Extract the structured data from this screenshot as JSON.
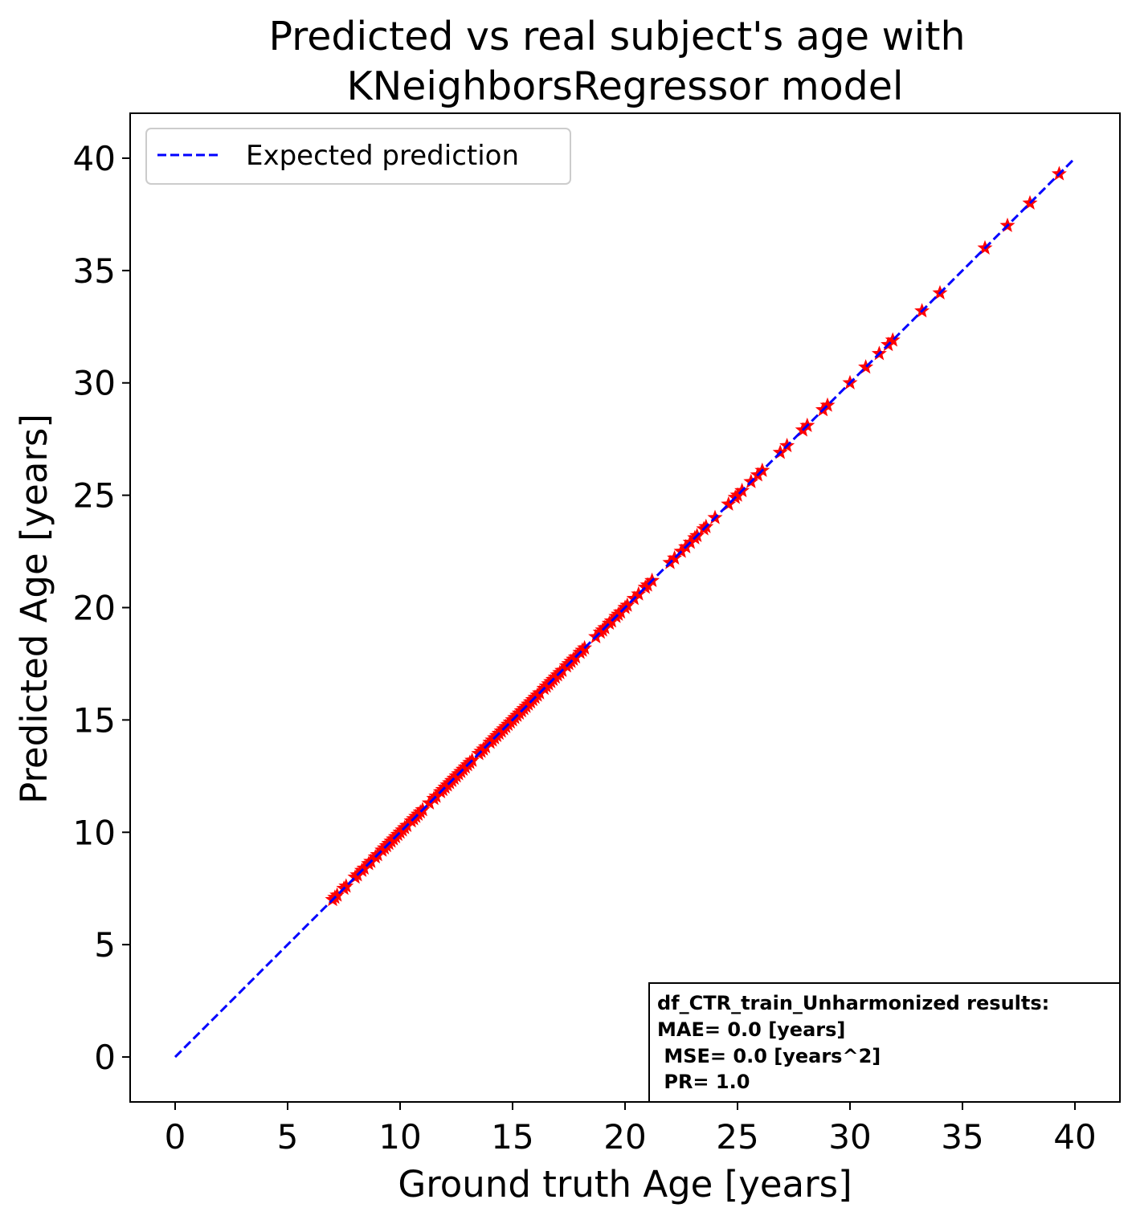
{
  "chart_data": {
    "type": "scatter",
    "title_lines": [
      "Predicted vs real subject's age with",
      "KNeighborsRegressor model"
    ],
    "xlabel": "Ground truth Age [years]",
    "ylabel": "Predicted Age [years]",
    "xlim": [
      -2,
      42
    ],
    "ylim": [
      -2,
      42
    ],
    "xticks": [
      0,
      5,
      10,
      15,
      20,
      25,
      30,
      35,
      40
    ],
    "yticks": [
      0,
      5,
      10,
      15,
      20,
      25,
      30,
      35,
      40
    ],
    "grid": false,
    "legend": {
      "location": "upper-left",
      "entries": [
        {
          "label": "Expected prediction",
          "color": "#0000ff",
          "style": "dashed"
        }
      ]
    },
    "expected_line": {
      "x": [
        0,
        40
      ],
      "y": [
        0,
        40
      ],
      "color": "#0000ff"
    },
    "scatter_series": {
      "marker": "star",
      "color": "#ff0000",
      "x": [
        7.0,
        7.1,
        7.2,
        7.5,
        7.6,
        8.0,
        8.1,
        8.3,
        8.4,
        8.6,
        8.7,
        8.9,
        9.0,
        9.2,
        9.3,
        9.4,
        9.5,
        9.6,
        9.7,
        9.8,
        9.9,
        10.0,
        10.1,
        10.2,
        10.3,
        10.5,
        10.6,
        10.7,
        10.8,
        10.9,
        11.0,
        11.3,
        11.5,
        11.6,
        11.8,
        11.9,
        12.0,
        12.1,
        12.2,
        12.3,
        12.4,
        12.5,
        12.6,
        12.7,
        12.8,
        12.9,
        13.0,
        13.1,
        13.2,
        13.5,
        13.6,
        13.7,
        13.8,
        14.0,
        14.1,
        14.2,
        14.3,
        14.4,
        14.5,
        14.6,
        14.7,
        14.8,
        14.9,
        15.0,
        15.1,
        15.2,
        15.3,
        15.4,
        15.5,
        15.6,
        15.7,
        15.8,
        15.9,
        16.0,
        16.1,
        16.2,
        16.4,
        16.5,
        16.6,
        16.7,
        16.8,
        16.9,
        17.0,
        17.1,
        17.2,
        17.4,
        17.5,
        17.6,
        17.7,
        17.8,
        18.0,
        18.1,
        18.2,
        18.7,
        18.9,
        19.0,
        19.1,
        19.3,
        19.4,
        19.6,
        19.7,
        19.8,
        20.0,
        20.1,
        20.4,
        20.6,
        20.9,
        21.0,
        21.2,
        22.0,
        22.2,
        22.5,
        22.7,
        22.9,
        23.1,
        23.2,
        23.5,
        23.6,
        24.0,
        24.6,
        24.9,
        25.0,
        25.2,
        25.6,
        25.9,
        26.1,
        26.9,
        27.2,
        27.9,
        28.1,
        28.8,
        29.0,
        30.0,
        30.7,
        31.3,
        31.7,
        31.9,
        33.2,
        34.0,
        36.0,
        37.0,
        38.0,
        39.3
      ],
      "y": [
        7.0,
        7.1,
        7.2,
        7.5,
        7.6,
        8.0,
        8.1,
        8.3,
        8.4,
        8.6,
        8.7,
        8.9,
        9.0,
        9.2,
        9.3,
        9.4,
        9.5,
        9.6,
        9.7,
        9.8,
        9.9,
        10.0,
        10.1,
        10.2,
        10.3,
        10.5,
        10.6,
        10.7,
        10.8,
        10.9,
        11.0,
        11.3,
        11.5,
        11.6,
        11.8,
        11.9,
        12.0,
        12.1,
        12.2,
        12.3,
        12.4,
        12.5,
        12.6,
        12.7,
        12.8,
        12.9,
        13.0,
        13.1,
        13.2,
        13.5,
        13.6,
        13.7,
        13.8,
        14.0,
        14.1,
        14.2,
        14.3,
        14.4,
        14.5,
        14.6,
        14.7,
        14.8,
        14.9,
        15.0,
        15.1,
        15.2,
        15.3,
        15.4,
        15.5,
        15.6,
        15.7,
        15.8,
        15.9,
        16.0,
        16.1,
        16.2,
        16.4,
        16.5,
        16.6,
        16.7,
        16.8,
        16.9,
        17.0,
        17.1,
        17.2,
        17.4,
        17.5,
        17.6,
        17.7,
        17.8,
        18.0,
        18.1,
        18.2,
        18.7,
        18.9,
        19.0,
        19.1,
        19.3,
        19.4,
        19.6,
        19.7,
        19.8,
        20.0,
        20.1,
        20.4,
        20.6,
        20.9,
        21.0,
        21.2,
        22.0,
        22.2,
        22.5,
        22.7,
        22.9,
        23.1,
        23.2,
        23.5,
        23.6,
        24.0,
        24.6,
        24.9,
        25.0,
        25.2,
        25.6,
        25.9,
        26.1,
        26.9,
        27.2,
        27.9,
        28.1,
        28.8,
        29.0,
        30.0,
        30.7,
        31.3,
        31.7,
        31.9,
        33.2,
        34.0,
        36.0,
        37.0,
        38.0,
        39.3
      ]
    },
    "stats_box": {
      "lines": [
        "df_CTR_train_Unharmonized results:",
        "MAE= 0.0 [years]",
        " MSE= 0.0 [years^2]",
        " PR= 1.0"
      ]
    }
  }
}
